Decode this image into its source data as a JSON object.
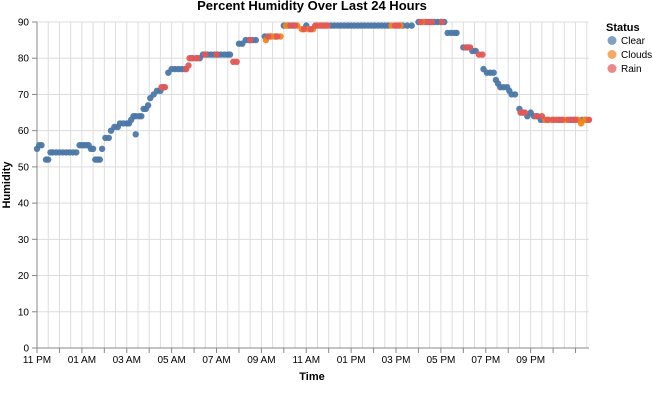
{
  "chart_data": {
    "type": "scatter",
    "title": "Percent Humidity Over Last 24 Hours",
    "xlabel": "Time",
    "ylabel": "Humidity",
    "ylim": [
      0,
      90
    ],
    "yticks": [
      0,
      10,
      20,
      30,
      40,
      50,
      60,
      70,
      80,
      90
    ],
    "xticks": [
      "11 PM",
      "01 AM",
      "03 AM",
      "05 AM",
      "07 AM",
      "09 AM",
      "11 AM",
      "01 PM",
      "03 PM",
      "05 PM",
      "07 PM",
      "09 PM"
    ],
    "xlim_hours": [
      23,
      47.6
    ],
    "grid": true,
    "legend": {
      "title": "Status",
      "position": "right",
      "entries": [
        {
          "name": "Clear",
          "color": "#4c78a8"
        },
        {
          "name": "Clouds",
          "color": "#f58518"
        },
        {
          "name": "Rain",
          "color": "#e45756"
        }
      ]
    },
    "series": [
      {
        "name": "Clear",
        "color": "#4c78a8",
        "points": [
          [
            23.0,
            55
          ],
          [
            23.1,
            56
          ],
          [
            23.2,
            56
          ],
          [
            23.4,
            52
          ],
          [
            23.5,
            52
          ],
          [
            23.6,
            54
          ],
          [
            23.7,
            54
          ],
          [
            23.85,
            54
          ],
          [
            24.0,
            54
          ],
          [
            24.15,
            54
          ],
          [
            24.3,
            54
          ],
          [
            24.45,
            54
          ],
          [
            24.6,
            54
          ],
          [
            24.75,
            54
          ],
          [
            24.9,
            56
          ],
          [
            25.0,
            56
          ],
          [
            25.1,
            56
          ],
          [
            25.2,
            56
          ],
          [
            25.3,
            56
          ],
          [
            25.4,
            55
          ],
          [
            25.5,
            55
          ],
          [
            25.6,
            52
          ],
          [
            25.7,
            52
          ],
          [
            25.8,
            52
          ],
          [
            25.9,
            55
          ],
          [
            26.05,
            58
          ],
          [
            26.2,
            58
          ],
          [
            26.3,
            60
          ],
          [
            26.45,
            61
          ],
          [
            26.6,
            61
          ],
          [
            26.7,
            62
          ],
          [
            26.85,
            62
          ],
          [
            27.0,
            62
          ],
          [
            27.1,
            62
          ],
          [
            27.2,
            63
          ],
          [
            27.3,
            64
          ],
          [
            27.4,
            64
          ],
          [
            27.4,
            59
          ],
          [
            27.55,
            64
          ],
          [
            27.65,
            64
          ],
          [
            27.75,
            66
          ],
          [
            27.85,
            66
          ],
          [
            27.95,
            67
          ],
          [
            28.05,
            69
          ],
          [
            28.2,
            70
          ],
          [
            28.35,
            71
          ],
          [
            28.5,
            71
          ],
          [
            28.65,
            72
          ],
          [
            28.85,
            76
          ],
          [
            29.0,
            77
          ],
          [
            29.15,
            77
          ],
          [
            29.3,
            77
          ],
          [
            29.45,
            77
          ],
          [
            29.6,
            77
          ],
          [
            29.9,
            80
          ],
          [
            30.1,
            80
          ],
          [
            30.25,
            80
          ],
          [
            30.4,
            81
          ],
          [
            30.6,
            81
          ],
          [
            30.75,
            81
          ],
          [
            30.9,
            81
          ],
          [
            31.05,
            81
          ],
          [
            31.2,
            81
          ],
          [
            31.35,
            81
          ],
          [
            31.5,
            81
          ],
          [
            31.6,
            81
          ],
          [
            32.0,
            84
          ],
          [
            32.15,
            84
          ],
          [
            32.3,
            85
          ],
          [
            32.45,
            85
          ],
          [
            32.6,
            85
          ],
          [
            32.75,
            85
          ],
          [
            33.15,
            86
          ],
          [
            33.4,
            86
          ],
          [
            33.6,
            86
          ],
          [
            34.0,
            89
          ],
          [
            34.2,
            89
          ],
          [
            34.4,
            89
          ],
          [
            35.0,
            89
          ],
          [
            35.5,
            89
          ],
          [
            36.1,
            89
          ],
          [
            36.25,
            89
          ],
          [
            36.4,
            89
          ],
          [
            36.55,
            89
          ],
          [
            36.7,
            89
          ],
          [
            36.85,
            89
          ],
          [
            37.0,
            89
          ],
          [
            37.15,
            89
          ],
          [
            37.3,
            89
          ],
          [
            37.45,
            89
          ],
          [
            37.6,
            89
          ],
          [
            37.75,
            89
          ],
          [
            37.9,
            89
          ],
          [
            38.05,
            89
          ],
          [
            38.2,
            89
          ],
          [
            38.35,
            89
          ],
          [
            38.5,
            89
          ],
          [
            38.65,
            89
          ],
          [
            39.3,
            89
          ],
          [
            39.5,
            89
          ],
          [
            39.7,
            89
          ],
          [
            40.0,
            90
          ],
          [
            40.3,
            90
          ],
          [
            40.5,
            90
          ],
          [
            40.7,
            90
          ],
          [
            40.85,
            90
          ],
          [
            41.0,
            90
          ],
          [
            41.15,
            90
          ],
          [
            41.3,
            87
          ],
          [
            41.45,
            87
          ],
          [
            41.6,
            87
          ],
          [
            41.7,
            87
          ],
          [
            42.0,
            83
          ],
          [
            42.2,
            83
          ],
          [
            42.4,
            82
          ],
          [
            42.55,
            82
          ],
          [
            42.9,
            77
          ],
          [
            43.05,
            76
          ],
          [
            43.2,
            76
          ],
          [
            43.35,
            76
          ],
          [
            43.45,
            74
          ],
          [
            43.55,
            73
          ],
          [
            43.65,
            72
          ],
          [
            43.8,
            72
          ],
          [
            43.95,
            72
          ],
          [
            44.05,
            71
          ],
          [
            44.15,
            70
          ],
          [
            44.3,
            70
          ],
          [
            44.5,
            66
          ],
          [
            44.65,
            65
          ],
          [
            44.85,
            64
          ],
          [
            45.0,
            65
          ],
          [
            45.15,
            64
          ],
          [
            45.3,
            64
          ],
          [
            45.45,
            63
          ],
          [
            45.6,
            63
          ],
          [
            46.3,
            63
          ],
          [
            46.8,
            63
          ],
          [
            47.3,
            63
          ],
          [
            47.45,
            63
          ]
        ]
      },
      {
        "name": "Clouds",
        "color": "#f58518",
        "points": [
          [
            33.2,
            85
          ],
          [
            33.45,
            86
          ],
          [
            33.65,
            86
          ],
          [
            33.85,
            86
          ],
          [
            34.1,
            89
          ],
          [
            34.6,
            89
          ],
          [
            34.8,
            88
          ],
          [
            35.1,
            88
          ],
          [
            35.3,
            88
          ],
          [
            35.55,
            89
          ],
          [
            35.7,
            89
          ],
          [
            35.85,
            89
          ],
          [
            38.8,
            89
          ],
          [
            39.0,
            89
          ],
          [
            39.2,
            89
          ],
          [
            40.2,
            90
          ],
          [
            45.65,
            63
          ],
          [
            45.8,
            63
          ],
          [
            45.95,
            63
          ],
          [
            46.1,
            63
          ],
          [
            46.45,
            63
          ],
          [
            46.6,
            63
          ],
          [
            46.95,
            63
          ],
          [
            47.1,
            63
          ],
          [
            47.25,
            62
          ],
          [
            47.4,
            63
          ],
          [
            47.55,
            63
          ]
        ]
      },
      {
        "name": "Rain",
        "color": "#e45756",
        "points": [
          [
            28.7,
            72
          ],
          [
            28.55,
            72
          ],
          [
            29.65,
            77
          ],
          [
            29.75,
            78
          ],
          [
            29.8,
            80
          ],
          [
            29.95,
            80
          ],
          [
            30.15,
            80
          ],
          [
            30.5,
            81
          ],
          [
            31.0,
            81
          ],
          [
            31.75,
            79
          ],
          [
            31.9,
            79
          ],
          [
            32.5,
            85
          ],
          [
            33.3,
            86
          ],
          [
            33.7,
            86
          ],
          [
            34.3,
            89
          ],
          [
            34.5,
            89
          ],
          [
            34.9,
            88
          ],
          [
            35.2,
            88
          ],
          [
            35.4,
            89
          ],
          [
            35.65,
            89
          ],
          [
            35.8,
            89
          ],
          [
            35.95,
            89
          ],
          [
            38.95,
            89
          ],
          [
            39.1,
            89
          ],
          [
            40.1,
            90
          ],
          [
            40.4,
            90
          ],
          [
            40.6,
            90
          ],
          [
            41.05,
            90
          ],
          [
            42.1,
            83
          ],
          [
            42.3,
            83
          ],
          [
            42.7,
            81
          ],
          [
            42.85,
            81
          ],
          [
            44.55,
            65
          ],
          [
            44.75,
            65
          ],
          [
            45.25,
            64
          ],
          [
            45.5,
            64
          ],
          [
            45.75,
            63
          ],
          [
            46.0,
            63
          ],
          [
            46.2,
            63
          ],
          [
            46.4,
            63
          ],
          [
            46.7,
            63
          ],
          [
            46.9,
            63
          ],
          [
            47.0,
            63
          ],
          [
            47.6,
            63
          ]
        ]
      }
    ]
  }
}
